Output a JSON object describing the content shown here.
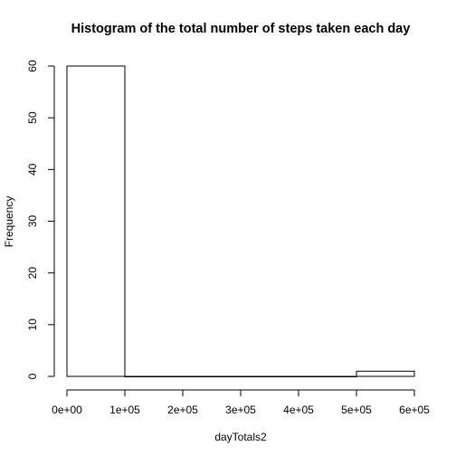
{
  "chart_data": {
    "type": "bar",
    "title": "Histogram of the total number of steps taken each day",
    "xlabel": "dayTotals2",
    "ylabel": "Frequency",
    "bins": [
      {
        "from": 0,
        "to": 100000,
        "count": 60
      },
      {
        "from": 100000,
        "to": 200000,
        "count": 0
      },
      {
        "from": 200000,
        "to": 300000,
        "count": 0
      },
      {
        "from": 300000,
        "to": 400000,
        "count": 0
      },
      {
        "from": 400000,
        "to": 500000,
        "count": 0
      },
      {
        "from": 500000,
        "to": 600000,
        "count": 1
      }
    ],
    "x_ticks": [
      0,
      100000,
      200000,
      300000,
      400000,
      500000,
      600000
    ],
    "x_tick_labels": [
      "0e+00",
      "1e+05",
      "2e+05",
      "3e+05",
      "4e+05",
      "5e+05",
      "6e+05"
    ],
    "y_ticks": [
      0,
      10,
      20,
      30,
      40,
      50,
      60
    ],
    "y_tick_labels": [
      "0",
      "10",
      "20",
      "30",
      "40",
      "50",
      "60"
    ],
    "xlim": [
      0,
      600000
    ],
    "ylim": [
      0,
      60
    ],
    "grid": false,
    "legend": "none",
    "colors": {
      "bar_fill": "#ffffff",
      "bar_stroke": "#000000",
      "axis": "#000000",
      "background": "#ffffff"
    }
  }
}
